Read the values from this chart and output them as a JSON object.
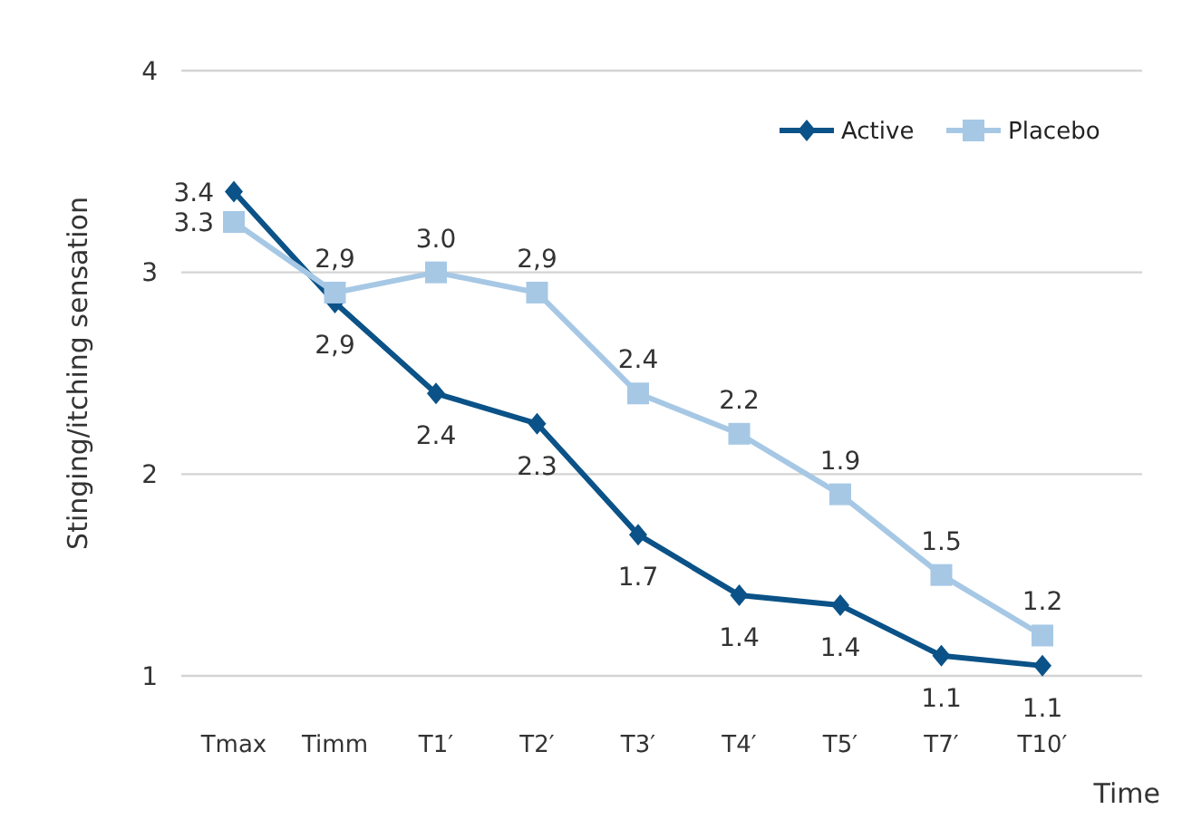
{
  "chart_data": {
    "type": "line",
    "xlabel": "Time",
    "ylabel": "Stinging/itching sensation",
    "categories": [
      "Tmax",
      "Timm",
      "T1′",
      "T2′",
      "T3′",
      "T4′",
      "T5′",
      "T7′",
      "T10′"
    ],
    "ylim": [
      1,
      4
    ],
    "yticks": [
      1,
      2,
      3,
      4
    ],
    "grid": "y",
    "legend": "top right",
    "line_style": "solid",
    "series": [
      {
        "name": "Active",
        "color": "#0a5287",
        "marker": "diamond",
        "values": [
          3.4,
          2.85,
          2.4,
          2.25,
          1.7,
          1.4,
          1.35,
          1.1,
          1.05
        ],
        "value_labels": [
          "3.4",
          "2,9",
          "2.4",
          "2.3",
          "1.7",
          "1.4",
          "1.4",
          "1.1",
          "1.1"
        ]
      },
      {
        "name": "Placebo",
        "color": "#a6c8e5",
        "marker": "square",
        "values": [
          3.25,
          2.9,
          3.0,
          2.9,
          2.4,
          2.2,
          1.9,
          1.5,
          1.2
        ],
        "value_labels": [
          "3.3",
          "2,9",
          "3.0",
          "2,9",
          "2.4",
          "2.2",
          "1.9",
          "1.5",
          "1.2"
        ]
      }
    ]
  }
}
